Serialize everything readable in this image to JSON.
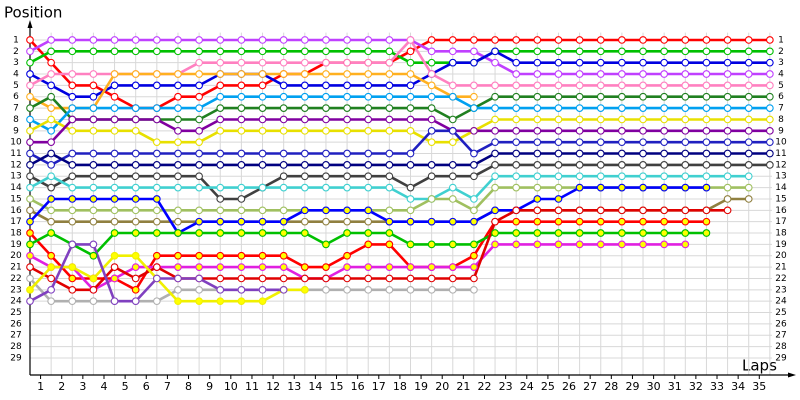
{
  "chart_data": {
    "type": "line",
    "title": "Position",
    "xlabel": "Laps",
    "x": [
      0,
      1,
      2,
      3,
      4,
      5,
      6,
      7,
      8,
      9,
      10,
      11,
      12,
      13,
      14,
      15,
      16,
      17,
      18,
      19,
      20,
      21,
      22,
      23,
      24,
      25,
      26,
      27,
      28,
      29,
      30,
      31,
      32,
      33,
      34,
      35
    ],
    "xlim": [
      0,
      36
    ],
    "ylim": [
      0,
      30.5
    ],
    "y_inverted": true,
    "grid": true,
    "xticks": [
      1,
      2,
      3,
      4,
      5,
      6,
      7,
      8,
      9,
      10,
      11,
      12,
      13,
      14,
      15,
      16,
      17,
      18,
      19,
      20,
      21,
      22,
      23,
      24,
      25,
      26,
      27,
      28,
      29,
      30,
      31,
      32,
      33,
      34,
      35
    ],
    "yticks": [
      1,
      2,
      3,
      4,
      5,
      6,
      7,
      8,
      9,
      10,
      11,
      12,
      13,
      14,
      15,
      16,
      17,
      18,
      19,
      20,
      21,
      22,
      23,
      24,
      25,
      26,
      27,
      28,
      29
    ],
    "series": [
      {
        "color": "#ff0000",
        "fill": "#ffffff",
        "values": [
          1,
          3,
          5,
          5,
          6,
          7,
          7,
          6,
          6,
          5,
          5,
          5,
          4,
          4,
          3,
          3,
          3,
          3,
          2,
          1,
          1,
          1,
          1,
          1,
          1,
          1,
          1,
          1,
          1,
          1,
          1,
          1,
          1,
          1,
          1,
          1
        ]
      },
      {
        "color": "#c040ff",
        "fill": "#ffffff",
        "values": [
          2,
          1,
          1,
          1,
          1,
          1,
          1,
          1,
          1,
          1,
          1,
          1,
          1,
          1,
          1,
          1,
          1,
          1,
          1,
          2,
          2,
          2,
          3,
          4,
          4,
          4,
          4,
          4,
          4,
          4,
          4,
          4,
          4,
          4,
          4,
          4
        ]
      },
      {
        "color": "#00c000",
        "fill": "#ffffff",
        "values": [
          3,
          2,
          2,
          2,
          2,
          2,
          2,
          2,
          2,
          2,
          2,
          2,
          2,
          2,
          2,
          2,
          2,
          2,
          3,
          3,
          3,
          3,
          2,
          2,
          2,
          2,
          2,
          2,
          2,
          2,
          2,
          2,
          2,
          2,
          2,
          2
        ]
      },
      {
        "color": "#0000e0",
        "fill": "#ffffff",
        "values": [
          4,
          5,
          6,
          6,
          5,
          5,
          5,
          5,
          5,
          4,
          4,
          4,
          5,
          5,
          5,
          5,
          5,
          5,
          5,
          4,
          3,
          3,
          2,
          3,
          3,
          3,
          3,
          3,
          3,
          3,
          3,
          3,
          3,
          3,
          3,
          3
        ]
      },
      {
        "color": "#ff80c0",
        "fill": "#ffffff",
        "values": [
          5,
          4,
          4,
          4,
          4,
          4,
          4,
          4,
          3,
          3,
          3,
          3,
          3,
          3,
          3,
          3,
          3,
          3,
          1,
          4,
          5,
          5,
          5,
          5,
          5,
          5,
          5,
          5,
          5,
          5,
          5,
          5,
          5,
          5,
          5,
          5
        ]
      },
      {
        "color": "#ffb020",
        "fill": "#ffffff",
        "values": [
          6,
          7,
          7,
          7,
          4,
          4,
          4,
          4,
          4,
          4,
          4,
          4,
          4,
          4,
          4,
          4,
          4,
          4,
          4,
          5,
          6,
          6,
          null,
          null,
          null,
          null,
          null,
          null,
          null,
          null,
          null,
          null,
          null,
          null,
          null,
          null
        ]
      },
      {
        "color": "#208020",
        "fill": "#ffffff",
        "values": [
          7,
          6,
          8,
          8,
          8,
          8,
          8,
          8,
          8,
          7,
          7,
          7,
          7,
          7,
          7,
          7,
          7,
          7,
          7,
          7,
          8,
          7,
          6,
          6,
          6,
          6,
          6,
          6,
          6,
          6,
          6,
          6,
          6,
          6,
          6,
          6
        ]
      },
      {
        "color": "#00a0f0",
        "fill": "#ffffff",
        "values": [
          8,
          9,
          7,
          7,
          7,
          7,
          7,
          7,
          7,
          6,
          6,
          6,
          6,
          6,
          6,
          6,
          6,
          6,
          6,
          6,
          6,
          7,
          7,
          7,
          7,
          7,
          7,
          7,
          7,
          7,
          7,
          7,
          7,
          7,
          7,
          7
        ]
      },
      {
        "color": "#e8e000",
        "fill": "#ffffff",
        "values": [
          9,
          8,
          9,
          9,
          9,
          9,
          10,
          10,
          10,
          9,
          9,
          9,
          9,
          9,
          9,
          9,
          9,
          9,
          9,
          10,
          10,
          9,
          8,
          8,
          8,
          8,
          8,
          8,
          8,
          8,
          8,
          8,
          8,
          8,
          8,
          8
        ]
      },
      {
        "color": "#8000a0",
        "fill": "#ffffff",
        "values": [
          10,
          10,
          8,
          8,
          8,
          8,
          8,
          9,
          9,
          8,
          8,
          8,
          8,
          8,
          8,
          8,
          8,
          8,
          8,
          8,
          9,
          9,
          9,
          9,
          9,
          9,
          9,
          9,
          9,
          9,
          9,
          9,
          9,
          9,
          9,
          9
        ]
      },
      {
        "color": "#2020c0",
        "fill": "#ffffff",
        "values": [
          11,
          12,
          11,
          11,
          11,
          11,
          11,
          11,
          11,
          11,
          11,
          11,
          11,
          11,
          11,
          11,
          11,
          11,
          11,
          9,
          9,
          11,
          10,
          10,
          10,
          10,
          10,
          10,
          10,
          10,
          10,
          10,
          10,
          10,
          10,
          10
        ]
      },
      {
        "color": "#000080",
        "fill": "#ffffff",
        "values": [
          12,
          11,
          12,
          12,
          12,
          12,
          12,
          12,
          12,
          12,
          12,
          12,
          12,
          12,
          12,
          12,
          12,
          12,
          12,
          12,
          12,
          12,
          11,
          11,
          11,
          11,
          11,
          11,
          11,
          11,
          11,
          11,
          11,
          11,
          11,
          11
        ]
      },
      {
        "color": "#404040",
        "fill": "#ffffff",
        "values": [
          13,
          14,
          13,
          13,
          13,
          13,
          13,
          13,
          13,
          15,
          15,
          14,
          13,
          13,
          13,
          13,
          13,
          13,
          14,
          13,
          13,
          13,
          12,
          12,
          12,
          12,
          12,
          12,
          12,
          12,
          12,
          12,
          12,
          12,
          12,
          12
        ]
      },
      {
        "color": "#40d0d0",
        "fill": "#ffffff",
        "values": [
          14,
          13,
          14,
          14,
          14,
          14,
          14,
          14,
          14,
          14,
          14,
          14,
          14,
          14,
          14,
          14,
          14,
          14,
          15,
          15,
          14,
          15,
          13,
          13,
          13,
          13,
          13,
          13,
          13,
          13,
          13,
          13,
          13,
          13,
          13,
          null
        ]
      },
      {
        "color": "#a0c060",
        "fill": "#ffffff",
        "values": [
          15,
          16,
          16,
          16,
          16,
          16,
          16,
          16,
          16,
          16,
          16,
          16,
          16,
          16,
          16,
          16,
          16,
          16,
          16,
          15,
          15,
          16,
          14,
          14,
          14,
          14,
          14,
          14,
          14,
          14,
          14,
          14,
          14,
          14,
          14,
          null
        ]
      },
      {
        "color": "#908040",
        "fill": "#ffffff",
        "values": [
          16,
          17,
          17,
          17,
          17,
          17,
          17,
          17,
          17,
          17,
          17,
          17,
          17,
          17,
          17,
          17,
          17,
          17,
          17,
          17,
          17,
          17,
          16,
          16,
          16,
          16,
          16,
          16,
          16,
          16,
          16,
          16,
          16,
          15,
          15,
          null
        ]
      },
      {
        "color": "#0000ff",
        "fill": "#ffff00",
        "values": [
          17,
          15,
          15,
          15,
          15,
          15,
          15,
          18,
          17,
          17,
          17,
          17,
          17,
          16,
          16,
          16,
          16,
          17,
          17,
          17,
          17,
          17,
          16,
          16,
          15,
          15,
          14,
          14,
          14,
          14,
          14,
          14,
          14,
          null,
          null,
          null
        ]
      },
      {
        "color": "#ff0000",
        "fill": "#ffff00",
        "values": [
          18,
          20,
          22,
          22,
          22,
          23,
          20,
          20,
          20,
          20,
          20,
          20,
          20,
          21,
          21,
          20,
          19,
          19,
          21,
          21,
          21,
          20,
          17,
          17,
          17,
          17,
          17,
          17,
          17,
          17,
          17,
          17,
          17,
          null,
          null,
          null
        ]
      },
      {
        "color": "#00c000",
        "fill": "#ffff00",
        "values": [
          19,
          18,
          19,
          20,
          18,
          18,
          18,
          18,
          18,
          18,
          18,
          18,
          18,
          18,
          19,
          18,
          18,
          18,
          19,
          19,
          19,
          19,
          18,
          18,
          18,
          18,
          18,
          18,
          18,
          18,
          18,
          18,
          18,
          null,
          null,
          null
        ]
      },
      {
        "color": "#e020e0",
        "fill": "#ffff00",
        "values": [
          20,
          21,
          21,
          23,
          22,
          21,
          21,
          21,
          21,
          21,
          21,
          21,
          21,
          22,
          22,
          21,
          21,
          21,
          21,
          21,
          21,
          21,
          19,
          19,
          19,
          19,
          19,
          19,
          19,
          19,
          19,
          19,
          null,
          null,
          null,
          null
        ]
      },
      {
        "color": "#e00000",
        "fill": "#ffffff",
        "values": [
          21,
          22,
          23,
          23,
          21,
          22,
          21,
          22,
          22,
          22,
          22,
          22,
          22,
          22,
          22,
          22,
          22,
          22,
          22,
          22,
          22,
          22,
          17,
          16,
          16,
          16,
          16,
          16,
          16,
          16,
          16,
          16,
          16,
          16,
          null,
          null
        ]
      },
      {
        "color": "#b0b0b0",
        "fill": "#ffffff",
        "values": [
          22,
          24,
          24,
          24,
          24,
          24,
          24,
          23,
          23,
          23,
          23,
          23,
          23,
          23,
          23,
          23,
          23,
          23,
          23,
          23,
          23,
          23,
          null,
          null,
          null,
          null,
          null,
          null,
          null,
          null,
          null,
          null,
          null,
          null,
          null,
          null
        ]
      },
      {
        "color": "#f0f000",
        "fill": "#ffff00",
        "values": [
          23,
          21,
          21,
          22,
          20,
          20,
          22,
          24,
          24,
          24,
          24,
          24,
          23,
          23,
          null,
          null,
          null,
          null,
          null,
          null,
          null,
          null,
          null,
          null,
          null,
          null,
          null,
          null,
          null,
          null,
          null,
          null,
          null,
          null,
          null,
          null
        ]
      },
      {
        "color": "#8040c0",
        "fill": "#ffffff",
        "values": [
          24,
          23,
          19,
          19,
          24,
          24,
          22,
          22,
          22,
          23,
          23,
          23,
          23,
          null,
          null,
          null,
          null,
          null,
          null,
          null,
          null,
          null,
          null,
          null,
          null,
          null,
          null,
          null,
          null,
          null,
          null,
          null,
          null,
          null,
          null,
          null
        ]
      }
    ]
  }
}
